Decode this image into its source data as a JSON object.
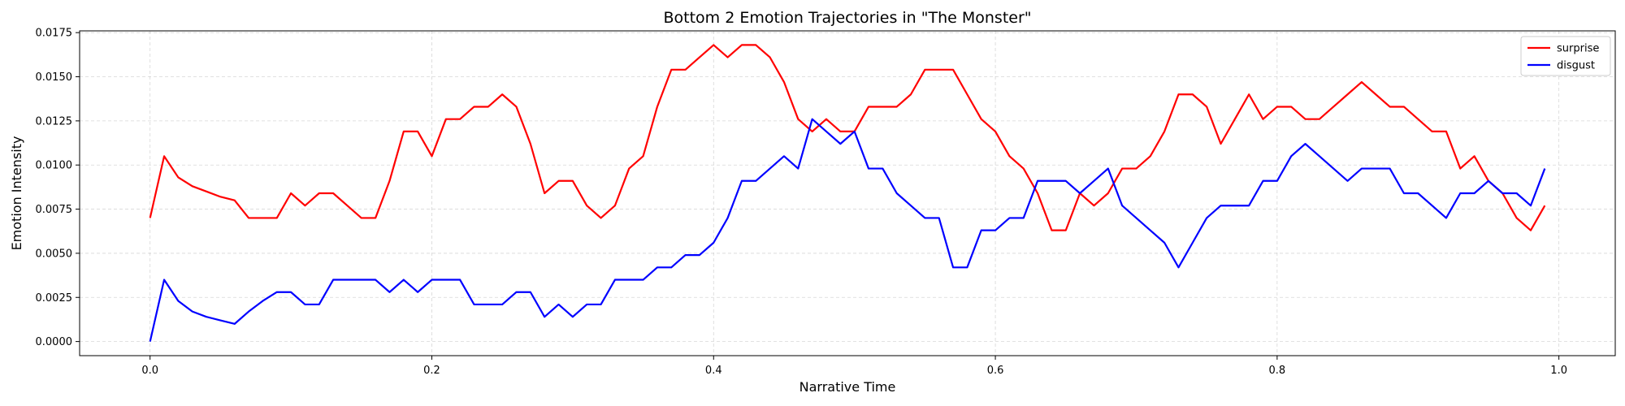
{
  "chart_data": {
    "type": "line",
    "title": "Bottom 2 Emotion Trajectories in \"The Monster\"",
    "xlabel": "Narrative Time",
    "ylabel": "Emotion Intensity",
    "xlim": [
      -0.05,
      1.04
    ],
    "ylim": [
      -0.0008,
      0.0176
    ],
    "x_ticks": [
      0.0,
      0.2,
      0.4,
      0.6,
      0.8,
      1.0
    ],
    "x_tick_labels": [
      "0.0",
      "0.2",
      "0.4",
      "0.6",
      "0.8",
      "1.0"
    ],
    "y_ticks": [
      0.0,
      0.0025,
      0.005,
      0.0075,
      0.01,
      0.0125,
      0.015,
      0.0175
    ],
    "y_tick_labels": [
      "0.0000",
      "0.0025",
      "0.0050",
      "0.0075",
      "0.0100",
      "0.0125",
      "0.0150",
      "0.0175"
    ],
    "grid": true,
    "legend_position": "top-right",
    "x": [
      0.0,
      0.01,
      0.02,
      0.03,
      0.04,
      0.05,
      0.06,
      0.07,
      0.08,
      0.09,
      0.1,
      0.11,
      0.12,
      0.13,
      0.14,
      0.15,
      0.16,
      0.17,
      0.18,
      0.19,
      0.2,
      0.21,
      0.22,
      0.23,
      0.24,
      0.25,
      0.26,
      0.27,
      0.28,
      0.29,
      0.3,
      0.31,
      0.32,
      0.33,
      0.34,
      0.35,
      0.36,
      0.37,
      0.38,
      0.39,
      0.4,
      0.41,
      0.42,
      0.43,
      0.44,
      0.45,
      0.46,
      0.47,
      0.48,
      0.49,
      0.5,
      0.51,
      0.52,
      0.53,
      0.54,
      0.55,
      0.56,
      0.57,
      0.58,
      0.59,
      0.6,
      0.61,
      0.62,
      0.63,
      0.64,
      0.65,
      0.66,
      0.67,
      0.68,
      0.69,
      0.7,
      0.71,
      0.72,
      0.73,
      0.74,
      0.75,
      0.76,
      0.77,
      0.78,
      0.79,
      0.8,
      0.81,
      0.82,
      0.83,
      0.84,
      0.85,
      0.86,
      0.87,
      0.88,
      0.89,
      0.9,
      0.91,
      0.92,
      0.93,
      0.94,
      0.95,
      0.96,
      0.97,
      0.98,
      0.99
    ],
    "series": [
      {
        "name": "surprise",
        "color": "#ff0000",
        "values": [
          0.007,
          0.0105,
          0.0093,
          0.0088,
          0.0085,
          0.0082,
          0.008,
          0.007,
          0.007,
          0.007,
          0.0084,
          0.0077,
          0.0084,
          0.0084,
          0.0077,
          0.007,
          0.007,
          0.0091,
          0.0119,
          0.0119,
          0.0105,
          0.0126,
          0.0126,
          0.0133,
          0.0133,
          0.014,
          0.0133,
          0.0112,
          0.0084,
          0.0091,
          0.0091,
          0.0077,
          0.007,
          0.0077,
          0.0098,
          0.0105,
          0.0133,
          0.0154,
          0.0154,
          0.0161,
          0.0168,
          0.0161,
          0.0168,
          0.0168,
          0.0161,
          0.0147,
          0.0126,
          0.0119,
          0.0126,
          0.0119,
          0.0119,
          0.0133,
          0.0133,
          0.0133,
          0.014,
          0.0154,
          0.0154,
          0.0154,
          0.014,
          0.0126,
          0.0119,
          0.0105,
          0.0098,
          0.0084,
          0.0063,
          0.0063,
          0.0084,
          0.0077,
          0.0084,
          0.0098,
          0.0098,
          0.0105,
          0.0119,
          0.014,
          0.014,
          0.0133,
          0.0112,
          0.0126,
          0.014,
          0.0126,
          0.0133,
          0.0133,
          0.0126,
          0.0126,
          0.0133,
          0.014,
          0.0147,
          0.014,
          0.0133,
          0.0133,
          0.0126,
          0.0119,
          0.0119,
          0.0098,
          0.0105,
          0.0091,
          0.0084,
          0.007,
          0.0063,
          0.0077
        ]
      },
      {
        "name": "disgust",
        "color": "#0000ff",
        "values": [
          0.0,
          0.0035,
          0.0023,
          0.0017,
          0.0014,
          0.0012,
          0.001,
          0.0017,
          0.0023,
          0.0028,
          0.0028,
          0.0021,
          0.0021,
          0.0035,
          0.0035,
          0.0035,
          0.0035,
          0.0028,
          0.0035,
          0.0028,
          0.0035,
          0.0035,
          0.0035,
          0.0021,
          0.0021,
          0.0021,
          0.0028,
          0.0028,
          0.0014,
          0.0021,
          0.0014,
          0.0021,
          0.0021,
          0.0035,
          0.0035,
          0.0035,
          0.0042,
          0.0042,
          0.0049,
          0.0049,
          0.0056,
          0.007,
          0.0091,
          0.0091,
          0.0098,
          0.0105,
          0.0098,
          0.0126,
          0.0119,
          0.0112,
          0.0119,
          0.0098,
          0.0098,
          0.0084,
          0.0077,
          0.007,
          0.007,
          0.0042,
          0.0042,
          0.0063,
          0.0063,
          0.007,
          0.007,
          0.0091,
          0.0091,
          0.0091,
          0.0084,
          0.0091,
          0.0098,
          0.0077,
          0.007,
          0.0063,
          0.0056,
          0.0042,
          0.0056,
          0.007,
          0.0077,
          0.0077,
          0.0077,
          0.0091,
          0.0091,
          0.0105,
          0.0112,
          0.0105,
          0.0098,
          0.0091,
          0.0098,
          0.0098,
          0.0098,
          0.0084,
          0.0084,
          0.0077,
          0.007,
          0.0084,
          0.0084,
          0.0091,
          0.0084,
          0.0084,
          0.0077,
          0.0098
        ]
      }
    ]
  }
}
